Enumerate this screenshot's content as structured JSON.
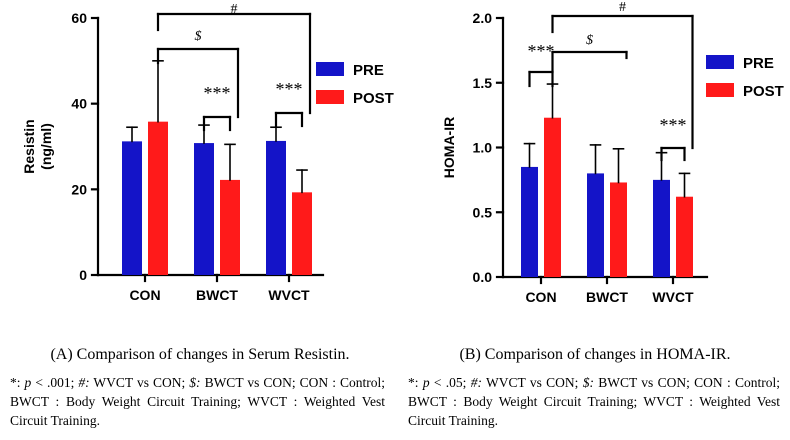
{
  "chart_data": [
    {
      "type": "bar",
      "panel": "A",
      "ylabel": "Resistin\n(ng/ml)",
      "ylim": [
        0,
        60
      ],
      "yticks": [
        "0",
        "20",
        "40",
        "60"
      ],
      "categories": [
        "CON",
        "BWCT",
        "WVCT"
      ],
      "series": [
        {
          "name": "PRE",
          "color": "#1414c8",
          "values": [
            31.2,
            30.8,
            31.3
          ],
          "errors": [
            3.3,
            4.2,
            3.2
          ]
        },
        {
          "name": "POST",
          "color": "#ff1a1a",
          "values": [
            35.8,
            22.2,
            19.3
          ],
          "errors": [
            14.2,
            8.3,
            5.2
          ]
        }
      ],
      "annotations": [
        {
          "label": "***",
          "type": "within",
          "group": 1
        },
        {
          "label": "***",
          "type": "within",
          "group": 2
        },
        {
          "label": "$",
          "type": "between",
          "from": 0,
          "to": 1
        },
        {
          "label": "#",
          "type": "between",
          "from": 0,
          "to": 2
        }
      ]
    },
    {
      "type": "bar",
      "panel": "B",
      "ylabel": "HOMA-IR",
      "ylim": [
        0,
        2.0
      ],
      "yticks": [
        "0.0",
        "0.5",
        "1.0",
        "1.5",
        "2.0"
      ],
      "categories": [
        "CON",
        "BWCT",
        "WVCT"
      ],
      "series": [
        {
          "name": "PRE",
          "color": "#1414c8",
          "values": [
            0.85,
            0.8,
            0.75
          ],
          "errors": [
            0.18,
            0.22,
            0.21
          ]
        },
        {
          "name": "POST",
          "color": "#ff1a1a",
          "values": [
            1.23,
            0.73,
            0.62
          ],
          "errors": [
            0.26,
            0.26,
            0.18
          ]
        }
      ],
      "annotations": [
        {
          "label": "***",
          "type": "within",
          "group": 0
        },
        {
          "label": "***",
          "type": "within",
          "group": 2
        },
        {
          "label": "$",
          "type": "between",
          "from": 0,
          "to": 1
        },
        {
          "label": "#",
          "type": "between",
          "from": 0,
          "to": 2
        }
      ]
    }
  ],
  "captions": {
    "a_title": "(A) Comparison of changes in Serum Resistin.",
    "a_p_sym": "*:",
    "a_p_val": "p",
    "a_p_rest": " < .001;",
    "a_hash": " #:",
    "a_rest1": " WVCT vs CON;",
    "a_dollar": " $:",
    "a_rest2": " BWCT vs CON; CON : Control; BWCT : Body Weight Circuit Training; WVCT : Weighted Vest Circuit Training.",
    "b_title": "(B) Comparison of changes in HOMA-IR.",
    "b_p_sym": "*:",
    "b_p_val": "p",
    "b_p_rest": " < .05;",
    "b_hash": " #:",
    "b_rest1": " WVCT vs CON;",
    "b_dollar": " $:",
    "b_rest2": " BWCT vs CON; CON : Control; BWCT : Body Weight Circuit Training; WVCT : Weighted Vest Circuit Training."
  }
}
